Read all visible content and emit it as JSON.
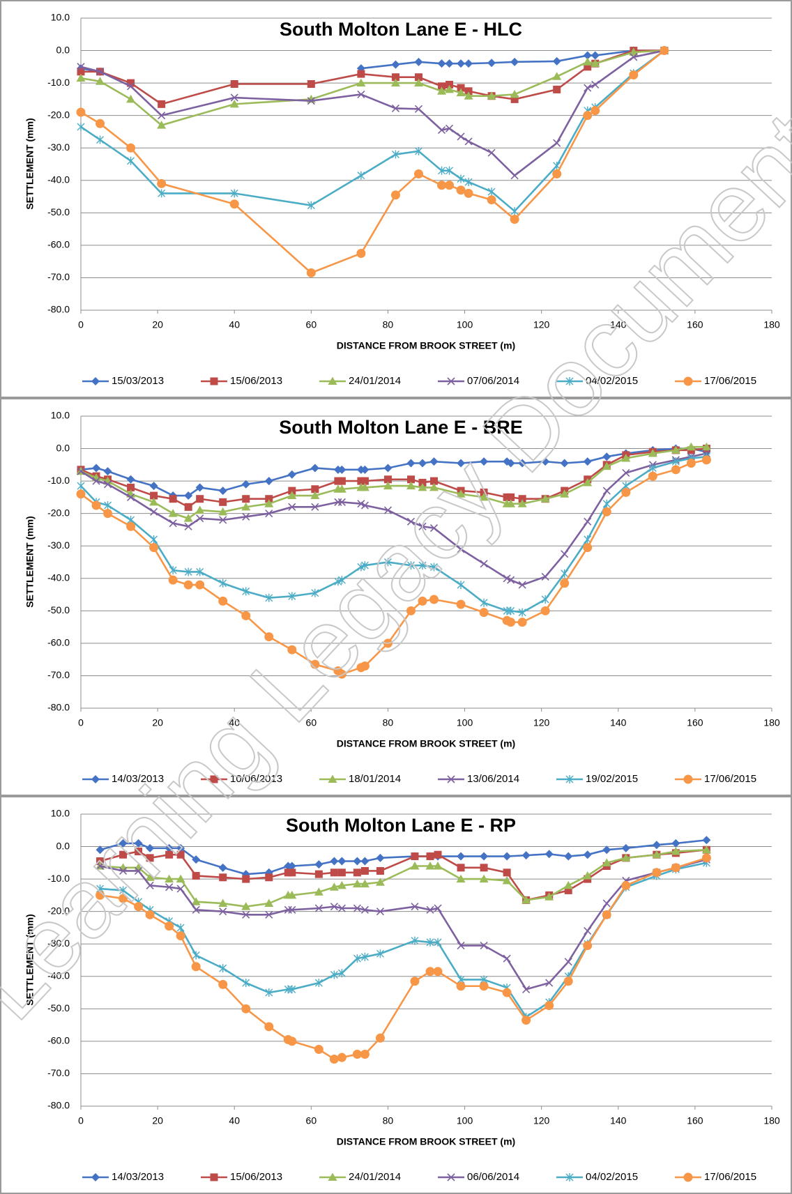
{
  "watermark": "Learning Legacy Document",
  "chart_data": [
    {
      "type": "line",
      "title": "South Molton Lane E - HLC",
      "xlabel": "DISTANCE FROM BROOK STREET (m)",
      "ylabel": "SETTLEMENT  (mm)",
      "x": [
        0,
        5,
        13,
        21,
        40,
        60,
        73,
        82,
        88,
        94,
        96,
        99,
        101,
        107,
        113,
        124,
        132,
        134,
        144,
        152
      ],
      "xlim": [
        0,
        180
      ],
      "xticks": [
        0,
        20,
        40,
        60,
        80,
        100,
        120,
        140,
        160,
        180
      ],
      "ylim": [
        -80,
        10
      ],
      "yticks": [
        {
          "value": 10,
          "label": "10.0"
        },
        {
          "value": 0,
          "label": "0.0"
        },
        {
          "value": -10,
          "label": "-10.0"
        },
        {
          "value": -20,
          "label": "-20.0"
        },
        {
          "value": -30,
          "label": "-30.0"
        },
        {
          "value": -40,
          "label": "-40.0"
        },
        {
          "value": -50,
          "label": "-50.0"
        },
        {
          "value": -60,
          "label": "-60.0"
        },
        {
          "value": -70,
          "label": "-70.0"
        },
        {
          "value": -80,
          "label": "-80.0"
        }
      ],
      "grid": true,
      "legend": "bottom",
      "series": [
        {
          "name": "15/03/2013",
          "color": "#4472c4",
          "marker": "diamond",
          "values": [
            -5.5,
            -6.5,
            null,
            null,
            null,
            null,
            -5.5,
            -4.3,
            -3.5,
            -4,
            -4,
            -4,
            -4,
            -3.8,
            -3.5,
            -3.3,
            -1.5,
            -1.5,
            0,
            0
          ]
        },
        {
          "name": "15/06/2013",
          "color": "#be4b48",
          "marker": "square",
          "values": [
            -6.5,
            -6.5,
            -10,
            -16.5,
            -10.3,
            -10.3,
            -7.2,
            -8.2,
            -8.2,
            -11,
            -10.5,
            -11.5,
            -12.5,
            -14,
            -15,
            -12,
            -5,
            -4,
            0,
            0
          ]
        },
        {
          "name": "24/01/2014",
          "color": "#9bbb59",
          "marker": "triangle",
          "values": [
            -8.5,
            -9.5,
            -15,
            -23,
            -16.5,
            -15,
            -10,
            -10,
            -10,
            -12.5,
            -12,
            -13,
            -14,
            -14,
            -13.5,
            -8,
            -3.5,
            -4,
            -0.5,
            0
          ]
        },
        {
          "name": "07/06/2014",
          "color": "#7d60a0",
          "marker": "x",
          "values": [
            -5,
            -6.5,
            -11,
            -20,
            -14.5,
            -15.5,
            -13.5,
            -17.8,
            -18,
            -24.5,
            -24,
            -26.5,
            -28,
            -31.5,
            -38.5,
            -28.5,
            -11.5,
            -10.5,
            -2,
            0
          ]
        },
        {
          "name": "04/02/2015",
          "color": "#4bacc6",
          "marker": "asterisk",
          "values": [
            -23.5,
            -27.5,
            -34,
            -44,
            -44,
            -47.7,
            -38.5,
            -32,
            -31,
            -37,
            -37,
            -39.5,
            -40.5,
            -43.5,
            -49.5,
            -35.5,
            -18.5,
            -17.5,
            -7,
            0
          ]
        },
        {
          "name": "17/06/2015",
          "color": "#f79646",
          "marker": "circle",
          "values": [
            -19,
            -22.5,
            -30,
            -41,
            -47.3,
            -68.5,
            -62.5,
            -44.5,
            -38,
            -41.5,
            -41.5,
            -43,
            -44,
            -46,
            -52,
            -38,
            -20,
            -18.5,
            -7.5,
            0
          ]
        }
      ]
    },
    {
      "type": "line",
      "title": "South Molton Lane E - BRE",
      "xlabel": "DISTANCE FROM BROOK STREET (m)",
      "ylabel": "SETTLEMENT  (mm)",
      "x": [
        0,
        4,
        7,
        13,
        19,
        24,
        28,
        31,
        37,
        43,
        49,
        55,
        61,
        67,
        68,
        73,
        74,
        80,
        86,
        89,
        92,
        99,
        105,
        111,
        112,
        115,
        121,
        126,
        132,
        137,
        142,
        149,
        155,
        159,
        163
      ],
      "xlim": [
        0,
        180
      ],
      "xticks": [
        0,
        20,
        40,
        60,
        80,
        100,
        120,
        140,
        160,
        180
      ],
      "ylim": [
        -80,
        10
      ],
      "yticks": [
        {
          "value": 10,
          "label": "10.0"
        },
        {
          "value": 0,
          "label": "0.0"
        },
        {
          "value": -10,
          "label": "-10.0"
        },
        {
          "value": -20,
          "label": "-20.0"
        },
        {
          "value": -30,
          "label": "-30.0"
        },
        {
          "value": -40,
          "label": "-40.0"
        },
        {
          "value": -50,
          "label": "-50.0"
        },
        {
          "value": -60,
          "label": "-60.0"
        },
        {
          "value": -70,
          "label": "-70.0"
        },
        {
          "value": -80,
          "label": "-80.0"
        }
      ],
      "grid": true,
      "legend": "bottom",
      "series": [
        {
          "name": "14/03/2013",
          "color": "#4472c4",
          "marker": "diamond",
          "values": [
            -6.5,
            -6,
            -7,
            -9.5,
            -11.5,
            -14.5,
            -14.5,
            -12,
            -13,
            -11,
            -10,
            -8,
            -6,
            -6.5,
            -6.5,
            -6.5,
            -6.5,
            -6,
            -4.5,
            -4.5,
            -4,
            -4.5,
            -4,
            -4,
            -4.5,
            -4.5,
            -4,
            -4.5,
            -4,
            -2.5,
            -1.5,
            -0.5,
            0,
            0,
            -1
          ]
        },
        {
          "name": "10/06/2013",
          "color": "#be4b48",
          "marker": "square",
          "values": [
            -6.5,
            -8.5,
            -9.5,
            -12,
            -14.5,
            -15.5,
            -18,
            -15.5,
            -16.5,
            -15.5,
            -15.5,
            -13,
            -12.5,
            -10,
            -10,
            -10,
            -10,
            -9.5,
            -9.5,
            -10.5,
            -10,
            -13,
            -13.5,
            -15,
            -15,
            -15.5,
            -15.5,
            -13,
            -9.5,
            -5,
            -2,
            -1,
            -0.5,
            -0.5,
            0
          ]
        },
        {
          "name": "18/01/2014",
          "color": "#9bbb59",
          "marker": "triangle",
          "values": [
            -7,
            -9,
            -10,
            -14,
            -16.5,
            -20,
            -21.5,
            -19,
            -19.5,
            -18,
            -17,
            -14.5,
            -14.5,
            -12.5,
            -12.5,
            -12,
            -12,
            -11.5,
            -11.5,
            -12,
            -12,
            -14,
            -15,
            -17,
            -17,
            -17,
            -15.5,
            -14,
            -10.5,
            -5.5,
            -3,
            -1.5,
            -0.5,
            0.5,
            0.5
          ]
        },
        {
          "name": "13/06/2014",
          "color": "#7d60a0",
          "marker": "x",
          "values": [
            -7,
            -10,
            -11,
            -15,
            -19.5,
            -23,
            -24,
            -21.5,
            -22,
            -21,
            -20,
            -18,
            -18,
            -16.5,
            -16.5,
            -17,
            -17.5,
            -19,
            -22.5,
            -24,
            -24.5,
            -31,
            -35.5,
            -40,
            -40.5,
            -42,
            -39.5,
            -32.5,
            -22.5,
            -13,
            -7.5,
            -5,
            -3.5,
            -2.5,
            -1.5
          ]
        },
        {
          "name": "19/02/2015",
          "color": "#4bacc6",
          "marker": "asterisk",
          "values": [
            -11.5,
            -16.5,
            -17.5,
            -22,
            -28,
            -37.5,
            -38,
            -38,
            -41.5,
            -44,
            -46,
            -45.5,
            -44.5,
            -41,
            -40.5,
            -36.5,
            -36,
            -35,
            -36,
            -36,
            -36.5,
            -42,
            -47.5,
            -50,
            -50,
            -50.5,
            -46.5,
            -38.5,
            -28,
            -17,
            -11.5,
            -6,
            -4,
            -3,
            -2.5
          ]
        },
        {
          "name": "17/06/2015",
          "color": "#f79646",
          "marker": "circle",
          "values": [
            -14,
            -17.5,
            -20,
            -24,
            -30.5,
            -40.5,
            -42,
            -42,
            -47,
            -51.5,
            -58,
            -62,
            -66.5,
            -68.5,
            -69.5,
            -67.5,
            -67,
            -60,
            -50,
            -47,
            -46.5,
            -48,
            -50.5,
            -53,
            -53.5,
            -53.5,
            -50,
            -41.5,
            -30.5,
            -19.5,
            -13.5,
            -8.5,
            -6.5,
            -4.5,
            -3.5
          ]
        }
      ]
    },
    {
      "type": "line",
      "title": "South Molton Lane E - RP",
      "xlabel": "DISTANCE FROM BROOK STREET (m)",
      "ylabel": "SETTLEMENT  (mm)",
      "x": [
        5,
        11,
        15,
        18,
        23,
        26,
        30,
        37,
        43,
        49,
        54,
        55,
        62,
        66,
        68,
        72,
        74,
        78,
        87,
        91,
        93,
        99,
        105,
        111,
        116,
        122,
        127,
        132,
        137,
        142,
        150,
        155,
        163
      ],
      "xlim": [
        0,
        180
      ],
      "xticks": [
        0,
        20,
        40,
        60,
        80,
        100,
        120,
        140,
        160,
        180
      ],
      "ylim": [
        -80,
        10
      ],
      "yticks": [
        {
          "value": 10,
          "label": "10.0"
        },
        {
          "value": 0,
          "label": "0.0"
        },
        {
          "value": -10,
          "label": "-10.0"
        },
        {
          "value": -20,
          "label": "-20.0"
        },
        {
          "value": -30,
          "label": "-30.0"
        },
        {
          "value": -40,
          "label": "-40.0"
        },
        {
          "value": -50,
          "label": "-50.0"
        },
        {
          "value": -60,
          "label": "-60.0"
        },
        {
          "value": -70,
          "label": "-70.0"
        },
        {
          "value": -80,
          "label": "-80.0"
        }
      ],
      "grid": true,
      "legend": "bottom",
      "series": [
        {
          "name": "14/03/2013",
          "color": "#4472c4",
          "marker": "diamond",
          "values": [
            -1,
            1,
            1,
            -0.5,
            -0.5,
            -0.5,
            -4,
            -6.5,
            -8.5,
            -8,
            -6,
            -6,
            -5.5,
            -4.5,
            -4.5,
            -4.5,
            -4.5,
            -3.5,
            -3,
            -3,
            -3,
            -3,
            -3,
            -3,
            -2.7,
            -2.3,
            -3,
            -2.5,
            -1,
            -0.5,
            0.5,
            1,
            2
          ]
        },
        {
          "name": "15/06/2013",
          "color": "#be4b48",
          "marker": "square",
          "values": [
            -4.5,
            -2.5,
            -1.5,
            -3.5,
            -2.5,
            -2.5,
            -9,
            -9.5,
            -10,
            -9.5,
            -8,
            -8,
            -8.5,
            -8,
            -8,
            -8,
            -7.5,
            -7.5,
            -3,
            -3,
            -2.5,
            -6.5,
            -6.5,
            -8,
            -16.5,
            -15,
            -13.5,
            -10,
            -6,
            -3.5,
            -2.5,
            -2,
            -1
          ]
        },
        {
          "name": "24/01/2014",
          "color": "#9bbb59",
          "marker": "triangle",
          "values": [
            -6,
            -6.5,
            -6.5,
            -9.5,
            -10,
            -10,
            -17,
            -17.5,
            -18.5,
            -17.5,
            -15,
            -15,
            -14,
            -12.5,
            -12,
            -11.5,
            -11.5,
            -11,
            -6,
            -6,
            -6,
            -10,
            -10,
            -10.5,
            -16.5,
            -15.5,
            -12,
            -9,
            -5,
            -3.5,
            -2.5,
            -1.5,
            -1
          ]
        },
        {
          "name": "06/06/2014",
          "color": "#7d60a0",
          "marker": "x",
          "values": [
            -6,
            -7.5,
            -7.5,
            -12,
            -12.5,
            -13,
            -19.5,
            -20,
            -21,
            -21,
            -19.5,
            -19.5,
            -19,
            -18.5,
            -19,
            -19,
            -19.5,
            -20,
            -18.5,
            -19.5,
            -19,
            -30.5,
            -30.5,
            -34.5,
            -44,
            -42,
            -35.5,
            -26,
            -17.5,
            -10.5,
            -8,
            -6.5,
            -4
          ]
        },
        {
          "name": "04/02/2015",
          "color": "#4bacc6",
          "marker": "asterisk",
          "values": [
            -13,
            -13.5,
            -17,
            -19.5,
            -23,
            -25,
            -33.5,
            -37.5,
            -42,
            -45,
            -44,
            -44,
            -42,
            -39.5,
            -39,
            -34.5,
            -34,
            -33,
            -29,
            -29.5,
            -29.5,
            -41,
            -41,
            -43.5,
            -52.5,
            -48,
            -40,
            -30,
            -21,
            -12.5,
            -9,
            -7,
            -5
          ]
        },
        {
          "name": "17/06/2015",
          "color": "#f79646",
          "marker": "circle",
          "values": [
            -15,
            -16,
            -18.5,
            -21,
            -24.5,
            -27.5,
            -37,
            -42.5,
            -50,
            -55.5,
            -59.5,
            -60,
            -62.5,
            -65.5,
            -65,
            -64,
            -64,
            -59,
            -41.5,
            -38.5,
            -38.5,
            -43,
            -43,
            -45,
            -53.5,
            -49,
            -41.5,
            -30.5,
            -21,
            -12,
            -8,
            -6.5,
            -3.5
          ]
        }
      ]
    }
  ]
}
